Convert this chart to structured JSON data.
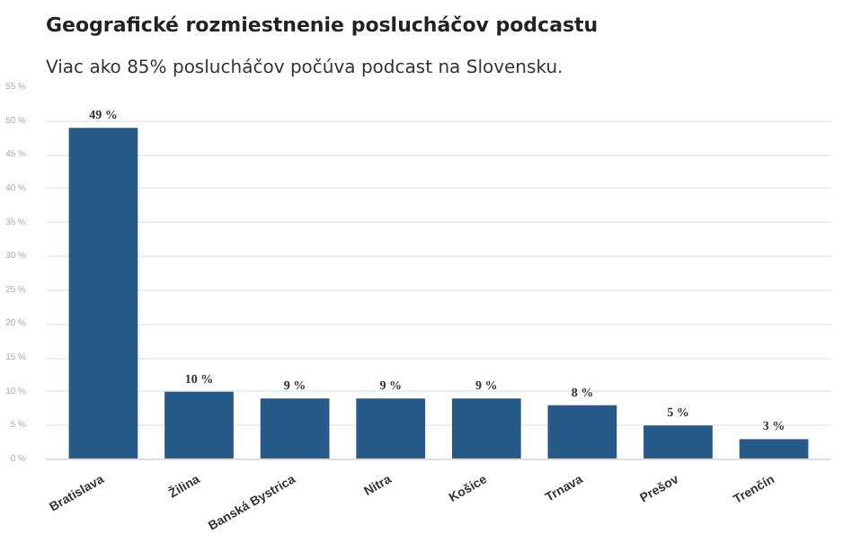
{
  "chart_data": {
    "type": "bar",
    "title": "Geografické rozmiestnenie poslucháčov podcastu",
    "subtitle": "Viac ako 85% poslucháčov počúva podcast na Slovensku.",
    "categories": [
      "Bratislava",
      "Žilina",
      "Banská Bystrica",
      "Nitra",
      "Košice",
      "Trnava",
      "Prešov",
      "Trenčín"
    ],
    "values": [
      49,
      10,
      9,
      9,
      9,
      8,
      5,
      3
    ],
    "value_labels": [
      "49 %",
      "10 %",
      "9 %",
      "9 %",
      "9 %",
      "8 %",
      "5 %",
      "3 %"
    ],
    "color": "#265a88",
    "ylim": [
      0,
      55
    ],
    "yticks": [
      {
        "value": 0,
        "label": "0 %"
      },
      {
        "value": 5,
        "label": "5 %"
      },
      {
        "value": 10,
        "label": "10 %"
      },
      {
        "value": 15,
        "label": "15 %"
      },
      {
        "value": 20,
        "label": "20 %"
      },
      {
        "value": 25,
        "label": "25 %"
      },
      {
        "value": 30,
        "label": "30 %"
      },
      {
        "value": 35,
        "label": "35 %"
      },
      {
        "value": 40,
        "label": "40 %"
      },
      {
        "value": 45,
        "label": "45 %"
      },
      {
        "value": 50,
        "label": "50 %"
      },
      {
        "value": 55,
        "label": "55 %"
      }
    ],
    "grid": "y"
  }
}
